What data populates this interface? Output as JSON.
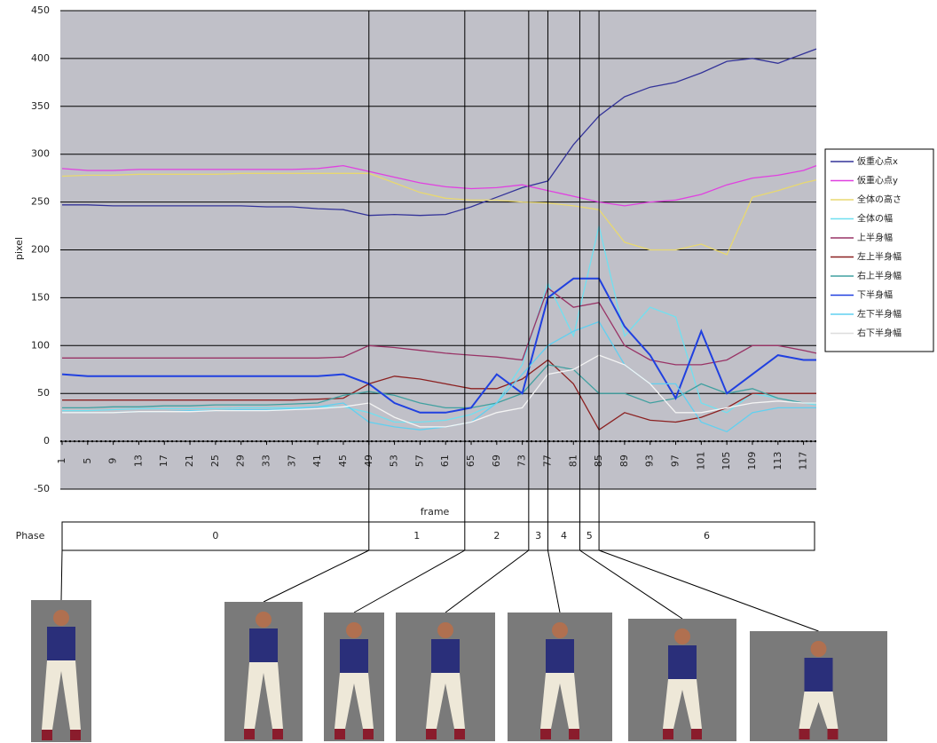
{
  "chart_data": {
    "type": "line",
    "x_label": "frame",
    "y_label": "pixel",
    "x": [
      1,
      5,
      9,
      13,
      17,
      21,
      25,
      29,
      33,
      37,
      41,
      45,
      49,
      53,
      57,
      61,
      65,
      69,
      73,
      77,
      81,
      85,
      89,
      93,
      97,
      101,
      105,
      109,
      113,
      117,
      119
    ],
    "xlim": [
      1,
      119
    ],
    "xticks": [
      1,
      5,
      9,
      13,
      17,
      21,
      25,
      29,
      33,
      37,
      41,
      45,
      49,
      53,
      57,
      61,
      65,
      69,
      73,
      77,
      81,
      85,
      89,
      93,
      97,
      101,
      105,
      109,
      113,
      117
    ],
    "ylim": [
      -50,
      450
    ],
    "yticks": [
      -50,
      0,
      50,
      100,
      150,
      200,
      250,
      300,
      350,
      400,
      450
    ],
    "grid": true,
    "legend": "right",
    "series": [
      {
        "name": "仮重心点x",
        "color": "#333399",
        "values": [
          247,
          247,
          246,
          246,
          246,
          246,
          246,
          246,
          245,
          245,
          243,
          242,
          236,
          237,
          236,
          237,
          245,
          255,
          265,
          272,
          310,
          340,
          360,
          370,
          375,
          385,
          397,
          400,
          395,
          405,
          410
        ]
      },
      {
        "name": "仮重心点y",
        "color": "#e040e0",
        "values": [
          285,
          283,
          283,
          284,
          284,
          284,
          284,
          284,
          284,
          284,
          285,
          288,
          282,
          276,
          270,
          266,
          264,
          265,
          268,
          262,
          256,
          250,
          246,
          250,
          252,
          258,
          268,
          275,
          278,
          283,
          288
        ]
      },
      {
        "name": "全体の高さ",
        "color": "#e8d870",
        "values": [
          277,
          278,
          278,
          279,
          279,
          279,
          279,
          280,
          280,
          280,
          280,
          280,
          280,
          270,
          260,
          254,
          252,
          252,
          250,
          249,
          246,
          242,
          208,
          200,
          200,
          206,
          195,
          255,
          262,
          270,
          273
        ]
      },
      {
        "name": "全体の幅",
        "color": "#70e0f0",
        "values": [
          32,
          32,
          33,
          34,
          34,
          34,
          34,
          35,
          35,
          35,
          36,
          36,
          30,
          20,
          20,
          22,
          28,
          40,
          80,
          165,
          110,
          225,
          110,
          140,
          130,
          40,
          30,
          50,
          45,
          40,
          38
        ]
      },
      {
        "name": "上半身幅",
        "color": "#993366",
        "values": [
          87,
          87,
          87,
          87,
          87,
          87,
          87,
          87,
          87,
          87,
          87,
          88,
          100,
          98,
          95,
          92,
          90,
          88,
          85,
          160,
          140,
          145,
          100,
          85,
          80,
          80,
          85,
          100,
          100,
          95,
          92
        ]
      },
      {
        "name": "左上半身幅",
        "color": "#8b2020",
        "values": [
          43,
          43,
          43,
          43,
          43,
          43,
          43,
          43,
          43,
          43,
          44,
          45,
          60,
          68,
          65,
          60,
          55,
          55,
          65,
          85,
          60,
          12,
          30,
          22,
          20,
          25,
          35,
          50,
          50,
          50,
          50
        ]
      },
      {
        "name": "右上半身幅",
        "color": "#40a0a0",
        "values": [
          35,
          35,
          36,
          36,
          37,
          37,
          38,
          38,
          38,
          39,
          40,
          48,
          52,
          48,
          40,
          35,
          35,
          40,
          50,
          80,
          75,
          50,
          50,
          40,
          45,
          60,
          50,
          55,
          45,
          40,
          40
        ]
      },
      {
        "name": "下半身幅",
        "color": "#2040e0",
        "values": [
          70,
          68,
          68,
          68,
          68,
          68,
          68,
          68,
          68,
          68,
          68,
          70,
          60,
          40,
          30,
          30,
          35,
          70,
          50,
          150,
          170,
          170,
          120,
          90,
          45,
          115,
          50,
          70,
          90,
          85,
          85
        ]
      },
      {
        "name": "左下半身幅",
        "color": "#60d0f0",
        "values": [
          30,
          30,
          30,
          31,
          31,
          32,
          32,
          33,
          33,
          34,
          36,
          40,
          20,
          15,
          12,
          15,
          20,
          40,
          70,
          100,
          115,
          125,
          80,
          60,
          60,
          20,
          10,
          30,
          35,
          35,
          35
        ]
      },
      {
        "name": "右下半身幅",
        "color": "#f4f4f4",
        "values": [
          30,
          30,
          30,
          31,
          31,
          31,
          32,
          32,
          32,
          33,
          34,
          36,
          40,
          25,
          15,
          15,
          20,
          30,
          35,
          70,
          75,
          90,
          80,
          60,
          30,
          30,
          35,
          40,
          42,
          40,
          40
        ]
      }
    ],
    "phase_title": "Phase",
    "phase_boundaries": [
      49,
      64,
      74,
      77,
      82,
      85
    ],
    "phase_labels": [
      "0",
      "1",
      "2",
      "3",
      "4",
      "5",
      "6"
    ]
  }
}
